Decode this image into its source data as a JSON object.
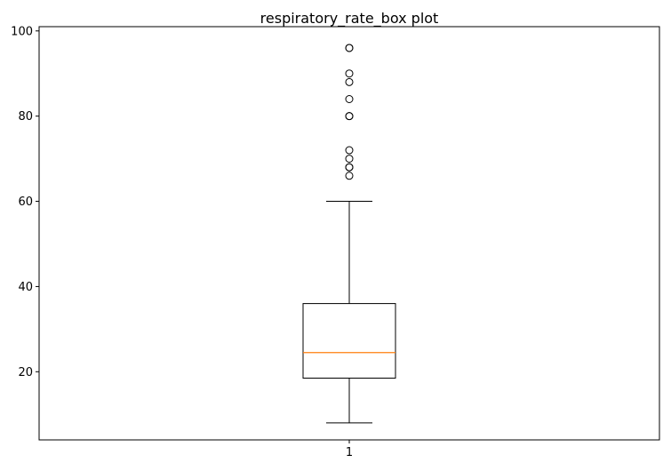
{
  "chart_data": {
    "type": "box",
    "title": "respiratory_rate_box plot",
    "xlabel": "",
    "ylabel": "",
    "categories": [
      "1"
    ],
    "ylim": [
      4,
      101
    ],
    "yticks": [
      20,
      40,
      60,
      80,
      100
    ],
    "grid": false,
    "box": {
      "whisker_low": 8,
      "q1": 18.5,
      "median": 24.5,
      "q3": 36,
      "whisker_high": 60
    },
    "outliers": [
      66,
      68,
      68,
      70,
      72,
      80,
      80,
      84,
      88,
      90,
      96,
      96
    ],
    "colors": {
      "box": "#000000",
      "median": "#ff7f0e",
      "outlier_edge": "#000000"
    }
  }
}
